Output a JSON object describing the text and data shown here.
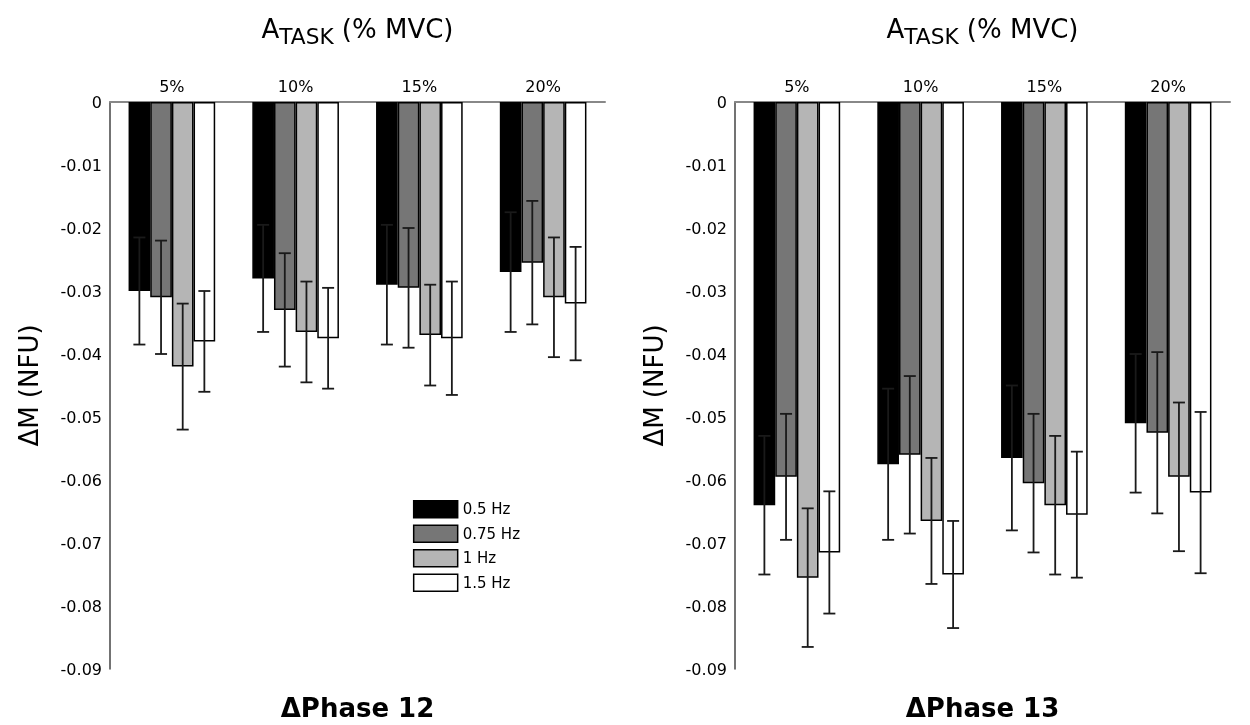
{
  "chart_data": [
    {
      "type": "bar",
      "title": "ΔPhase 12",
      "xlabel": "A$_{TASK}$ (% MVC)",
      "ylabel": "ΔM (NFU)",
      "categories": [
        "5%",
        "10%",
        "15%",
        "20%"
      ],
      "series": [
        {
          "name": "0.5 Hz",
          "color": "#000000",
          "values": [
            -0.03,
            -0.028,
            -0.029,
            -0.027
          ],
          "errors": [
            0.0085,
            0.0085,
            0.0095,
            0.0095
          ]
        },
        {
          "name": "0.75 Hz",
          "color": "#767676",
          "values": [
            -0.031,
            -0.033,
            -0.0295,
            -0.0255
          ],
          "errors": [
            0.009,
            0.009,
            0.0095,
            0.0098
          ]
        },
        {
          "name": "1 Hz",
          "color": "#b5b5b5",
          "values": [
            -0.042,
            -0.0365,
            -0.037,
            -0.031
          ],
          "errors": [
            0.01,
            0.008,
            0.008,
            0.0095
          ]
        },
        {
          "name": "1.5 Hz",
          "color": "#ffffff",
          "values": [
            -0.038,
            -0.0375,
            -0.0375,
            -0.032
          ],
          "errors": [
            0.008,
            0.008,
            0.009,
            0.009
          ]
        }
      ],
      "ylim": [
        -0.09,
        0
      ],
      "yticks": [
        0,
        -0.01,
        -0.02,
        -0.03,
        -0.04,
        -0.05,
        -0.06,
        -0.07,
        -0.08,
        -0.09
      ],
      "grid": false,
      "legend": "bottom right"
    },
    {
      "type": "bar",
      "title": "ΔPhase 13",
      "xlabel": "A$_{TASK}$ (% MVC)",
      "ylabel": "ΔM (NFU)",
      "categories": [
        "5%",
        "10%",
        "15%",
        "20%"
      ],
      "series": [
        {
          "color": "#000000",
          "values": [
            -0.064,
            -0.0575,
            -0.0565,
            -0.051
          ],
          "errors": [
            0.011,
            0.012,
            0.0115,
            0.011
          ]
        },
        {
          "color": "#767676",
          "values": [
            -0.0595,
            -0.056,
            -0.0605,
            -0.0525
          ],
          "errors": [
            0.01,
            0.0125,
            0.011,
            0.0128
          ]
        },
        {
          "color": "#b5b5b5",
          "values": [
            -0.0755,
            -0.0665,
            -0.064,
            -0.0595
          ],
          "errors": [
            0.011,
            0.01,
            0.011,
            0.0118
          ]
        },
        {
          "color": "#ffffff",
          "values": [
            -0.0715,
            -0.075,
            -0.0655,
            -0.062
          ],
          "errors": [
            0.0097,
            0.0085,
            0.01,
            0.0128
          ]
        }
      ],
      "ylim": [
        -0.09,
        0
      ],
      "yticks": [
        0,
        -0.01,
        -0.02,
        -0.03,
        -0.04,
        -0.05,
        -0.06,
        -0.07,
        -0.08,
        -0.09
      ],
      "grid": false,
      "legend": false
    }
  ]
}
